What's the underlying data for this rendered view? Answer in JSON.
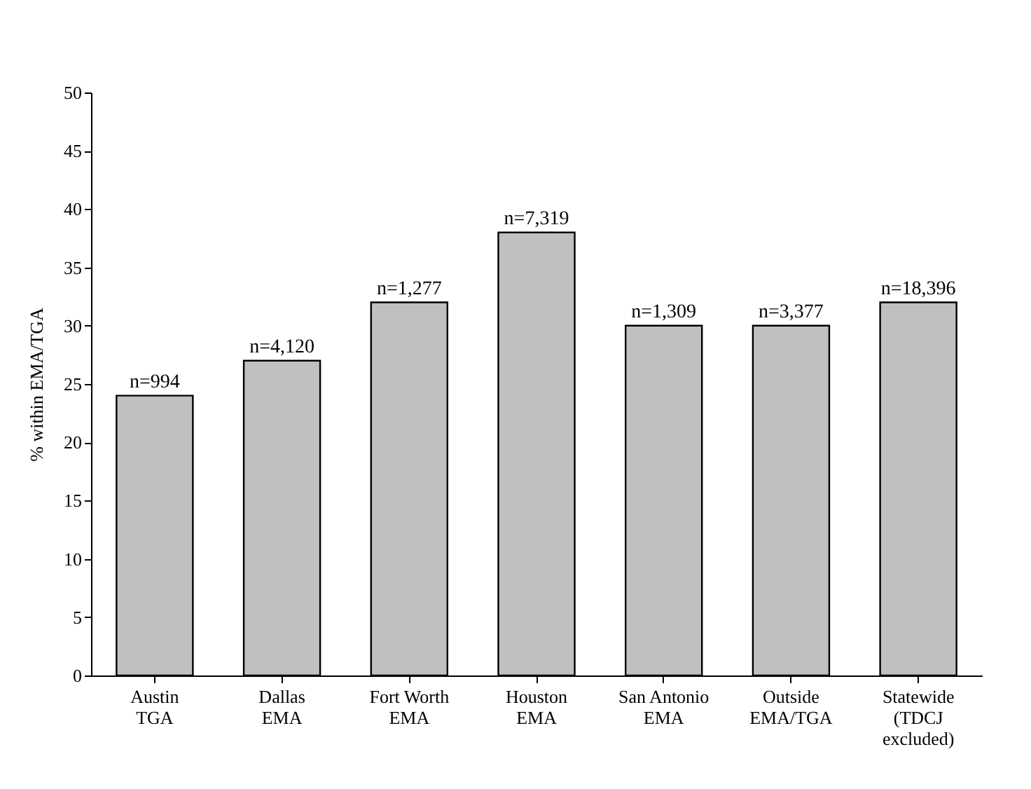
{
  "chart_data": {
    "type": "bar",
    "ylabel": "% within EMA/TGA",
    "categories": [
      "Austin\nTGA",
      "Dallas\nEMA",
      "Fort Worth\nEMA",
      "Houston\nEMA",
      "San Antonio\nEMA",
      "Outside\nEMA/TGA",
      "Statewide\n(TDCJ\nexcluded)"
    ],
    "values": [
      24,
      27,
      32,
      38,
      30,
      30,
      32
    ],
    "annotations": [
      {
        "text": "n=994",
        "x": "Austin\nTGA",
        "y": 24
      },
      {
        "text": "n=4,120",
        "x": "Dallas\nEMA",
        "y": 27
      },
      {
        "text": "n=1,277",
        "x": "Fort Worth\nEMA",
        "y": 32
      },
      {
        "text": "n=7,319",
        "x": "Houston\nEMA",
        "y": 38
      },
      {
        "text": "n=1,309",
        "x": "San Antonio\nEMA",
        "y": 30
      },
      {
        "text": "n=3,377",
        "x": "Outside\nEMA/TGA",
        "y": 30
      },
      {
        "text": "n=18,396",
        "x": "Statewide\n(TDCJ\nexcluded)",
        "y": 32
      }
    ],
    "color": "#c0c0c0",
    "ylim": [
      0,
      50
    ],
    "yticks": [
      0,
      5,
      10,
      15,
      20,
      25,
      30,
      35,
      40,
      45,
      50
    ],
    "grid": false
  }
}
